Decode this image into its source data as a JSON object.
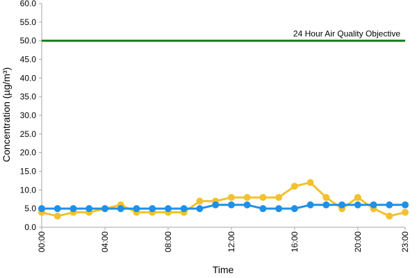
{
  "chart_data": {
    "type": "line",
    "xlabel": "Time",
    "ylabel": "Concentration (µg/m³)",
    "ylim": [
      0,
      60
    ],
    "y_ticks": [
      "0.0",
      "5.0",
      "10.0",
      "15.0",
      "20.0",
      "25.0",
      "30.0",
      "35.0",
      "40.0",
      "45.0",
      "50.0",
      "55.0",
      "60.0"
    ],
    "x_tick_hours": [
      0,
      4,
      8,
      12,
      16,
      20,
      23
    ],
    "x_tick_labels": [
      "00:00",
      "04:00",
      "08:00",
      "12:00",
      "16:00",
      "20:00",
      "23:00"
    ],
    "x": [
      0,
      1,
      2,
      3,
      4,
      5,
      6,
      7,
      8,
      9,
      10,
      11,
      12,
      13,
      14,
      15,
      16,
      17,
      18,
      19,
      20,
      21,
      22,
      23
    ],
    "grid": false,
    "series": [
      {
        "color": "#f2c12e",
        "values": [
          4,
          3,
          4,
          4,
          5,
          6,
          4,
          4,
          4,
          4,
          7,
          7,
          8,
          8,
          8,
          8,
          11,
          12,
          8,
          5,
          8,
          5,
          3,
          4
        ]
      },
      {
        "color": "#1e90e8",
        "values": [
          5,
          5,
          5,
          5,
          5,
          5,
          5,
          5,
          5,
          5,
          5,
          6,
          6,
          6,
          5,
          5,
          5,
          6,
          6,
          6,
          6,
          6,
          6,
          6
        ]
      }
    ],
    "reference_line": {
      "value": 50,
      "label": "24 Hour Air Quality Objective",
      "color": "#1a7a1a"
    },
    "axis_color": "#a6a6a6"
  }
}
